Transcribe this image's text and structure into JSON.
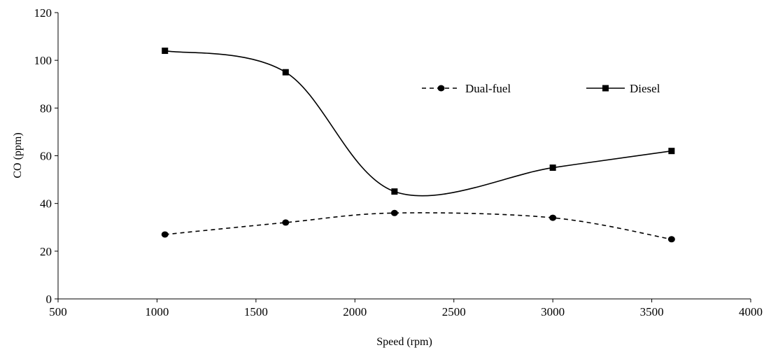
{
  "chart_data": {
    "type": "line",
    "xlabel": "Speed (rpm)",
    "ylabel": "CO (ppm)",
    "xlim": [
      500,
      4000
    ],
    "ylim": [
      0,
      120
    ],
    "xticks": [
      500,
      1000,
      1500,
      2000,
      2500,
      3000,
      3500,
      4000
    ],
    "yticks": [
      0,
      20,
      40,
      60,
      80,
      100,
      120
    ],
    "grid": false,
    "legend_position": "top-right",
    "series": [
      {
        "name": "Dual-fuel",
        "line_style": "dashed",
        "marker": "circle",
        "color": "#000000",
        "x": [
          1040,
          1650,
          2200,
          3000,
          3600
        ],
        "y": [
          27,
          32,
          36,
          34,
          25
        ]
      },
      {
        "name": "Diesel",
        "line_style": "solid",
        "marker": "square",
        "color": "#000000",
        "x": [
          1040,
          1650,
          2200,
          3000,
          3600
        ],
        "y": [
          104,
          95,
          45,
          55,
          62
        ]
      }
    ]
  }
}
